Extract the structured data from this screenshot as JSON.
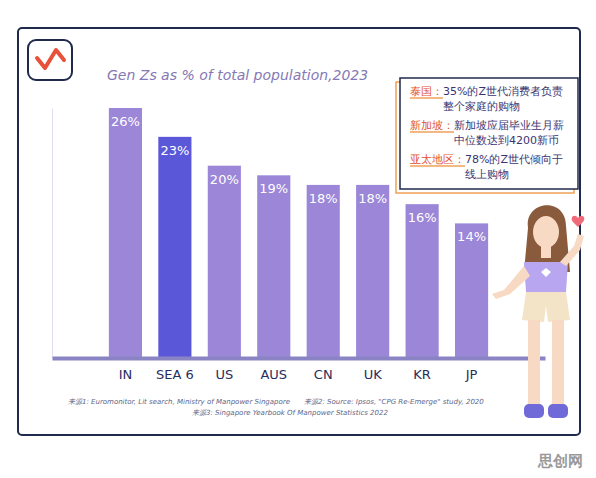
{
  "chart_data": {
    "type": "bar",
    "title": "Gen Zs as % of total population,2023",
    "categories": [
      "IN",
      "SEA 6",
      "US",
      "AUS",
      "CN",
      "UK",
      "KR",
      "JP"
    ],
    "values": [
      26,
      23,
      20,
      19,
      18,
      18,
      16,
      14
    ],
    "value_labels": [
      "26%",
      "23%",
      "20%",
      "19%",
      "18%",
      "18%",
      "16%",
      "14%"
    ],
    "colors": [
      "#9b86d8",
      "#5b57d9",
      "#9b86d8",
      "#9b86d8",
      "#9b86d8",
      "#9b86d8",
      "#9b86d8",
      "#9b86d8"
    ],
    "ylim": [
      0,
      26
    ],
    "grid": false,
    "data_labels": true,
    "tick_labels": "x",
    "annotations": [
      {
        "label": "泰国：",
        "text": "35%的Z世代消费者负责整个家庭的购物"
      },
      {
        "label": "新加坡：",
        "text": "新加坡应届毕业生月薪中位数达到4200新币"
      },
      {
        "label": "亚太地区：",
        "text": "78%的Z世代倾向于线上购物"
      }
    ],
    "sources": [
      "来源1: Euromonitor, Lit search, Ministry of Manpower Singapore",
      "来源2: Source: Ipsos, \"CPG Re-Emerge\" study, 2020",
      "来源3: Singapore Yearbook Of Manpower Statistics 2022"
    ],
    "watermark": "思创网"
  }
}
